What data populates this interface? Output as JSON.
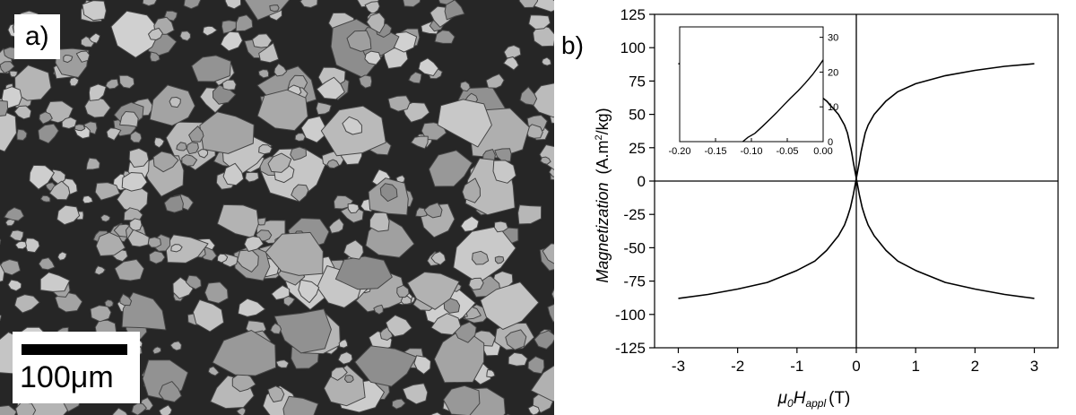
{
  "panel_a": {
    "label": "a)",
    "scale_bar_text": "100μm"
  },
  "chart_data": {
    "type": "line",
    "panel_label": "b)",
    "title": "",
    "ylabel_main": "Magnetization",
    "ylabel_unit_pre": "(A.m",
    "ylabel_unit_sup": "2",
    "ylabel_unit_post": "/kg)",
    "xlabel_mu": "μ",
    "xlabel_mu_sub": "0",
    "xlabel_H": "H",
    "xlabel_H_sub": "appl",
    "xlabel_unit": "(T)",
    "xlim": [
      -3.4,
      3.4
    ],
    "ylim": [
      -125,
      125
    ],
    "x_ticks": [
      -3,
      -2,
      -1,
      0,
      1,
      2,
      3
    ],
    "y_ticks": [
      125,
      100,
      75,
      50,
      25,
      0,
      -25,
      -50,
      -75,
      -100,
      -125
    ],
    "zero_lines": true,
    "series": [
      {
        "x": [
          -3.0,
          -2.5,
          -2.0,
          -1.5,
          -1.0,
          -0.7,
          -0.5,
          -0.3,
          -0.2,
          -0.15,
          -0.1,
          -0.08,
          -0.05,
          0.0,
          0.05,
          0.1,
          0.15,
          0.2,
          0.3,
          0.5,
          0.7,
          1.0,
          1.5,
          2.0,
          2.5,
          3.0
        ],
        "y": [
          88,
          86,
          83,
          79,
          73,
          67,
          60,
          50,
          42,
          36,
          26,
          22,
          14,
          2,
          -10,
          -20,
          -27,
          -33,
          -41,
          -52,
          -60,
          -67,
          -76,
          -81,
          -85,
          -88
        ]
      },
      {
        "x": [
          -3.0,
          -2.5,
          -2.0,
          -1.5,
          -1.0,
          -0.7,
          -0.5,
          -0.3,
          -0.2,
          -0.15,
          -0.1,
          -0.05,
          0.0,
          0.05,
          0.08,
          0.1,
          0.15,
          0.2,
          0.3,
          0.5,
          0.7,
          1.0,
          1.5,
          2.0,
          2.5,
          3.0
        ],
        "y": [
          -88,
          -85,
          -81,
          -76,
          -67,
          -60,
          -52,
          -41,
          -33,
          -27,
          -20,
          -10,
          2,
          14,
          22,
          26,
          36,
          42,
          50,
          60,
          67,
          73,
          79,
          83,
          86,
          88
        ]
      }
    ],
    "inset": {
      "xlim": [
        -0.2,
        0.0
      ],
      "ylim": [
        0,
        33
      ],
      "x_ticks": [
        -0.2,
        -0.15,
        -0.1,
        -0.05,
        0.0
      ],
      "x_tick_labels": [
        "-0.20",
        "-0.15",
        "-0.10",
        "-0.05",
        "0.00"
      ],
      "y_ticks": [
        0,
        10,
        20,
        30
      ],
      "series": [
        {
          "x": [
            -0.112,
            -0.105,
            -0.095,
            -0.085,
            -0.075,
            -0.065,
            -0.055,
            -0.045,
            -0.035,
            -0.025,
            -0.015,
            -0.005,
            0.0
          ],
          "y": [
            0,
            1.2,
            2.4,
            4.3,
            6.3,
            8.3,
            10.5,
            12.6,
            14.6,
            16.8,
            19.2,
            22.0,
            23.5
          ]
        }
      ]
    }
  }
}
